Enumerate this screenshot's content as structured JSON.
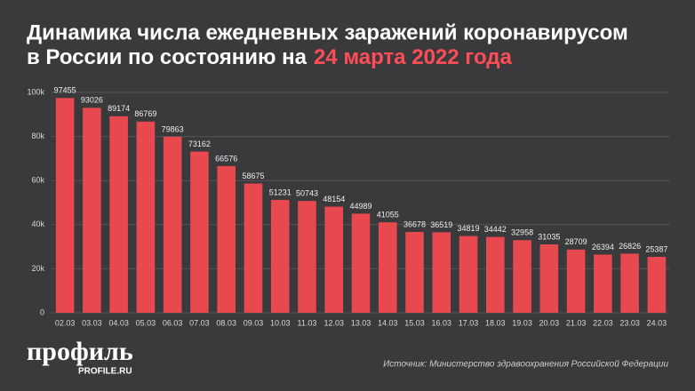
{
  "chart_data": {
    "type": "bar",
    "title": "Динамика числа ежедневных заражений коронавирусом",
    "title_line2": "в России по состоянию на",
    "title_highlight": "24 марта 2022 года",
    "categories": [
      "02.03",
      "03.03",
      "04.03",
      "05.03",
      "06.03",
      "07.03",
      "08.03",
      "09.03",
      "10.03",
      "11.03",
      "12.03",
      "13.03",
      "14.03",
      "15.03",
      "16.03",
      "17.03",
      "18.03",
      "19.03",
      "20.03",
      "21.03",
      "22.03",
      "23.03",
      "24.03"
    ],
    "values": [
      97455,
      93026,
      89174,
      86769,
      79863,
      73162,
      66576,
      58675,
      51231,
      50743,
      48154,
      44989,
      41055,
      36678,
      36519,
      34819,
      34442,
      32958,
      31035,
      28709,
      26394,
      26826,
      25387
    ],
    "color": "#e8494f",
    "ylim": [
      0,
      100000
    ],
    "yticks": [
      0,
      {
        "value": 20000,
        "label": "20k"
      },
      {
        "value": 40000,
        "label": "40k"
      },
      {
        "value": 60000,
        "label": "60k"
      },
      {
        "value": 80000,
        "label": "80k"
      },
      {
        "value": 100000,
        "label": "100k"
      }
    ],
    "grid": true,
    "source": "Источник: Министерство здравоохранения Российской Федерации",
    "logo": "профиль",
    "logo_site": "PROFILE.RU"
  }
}
